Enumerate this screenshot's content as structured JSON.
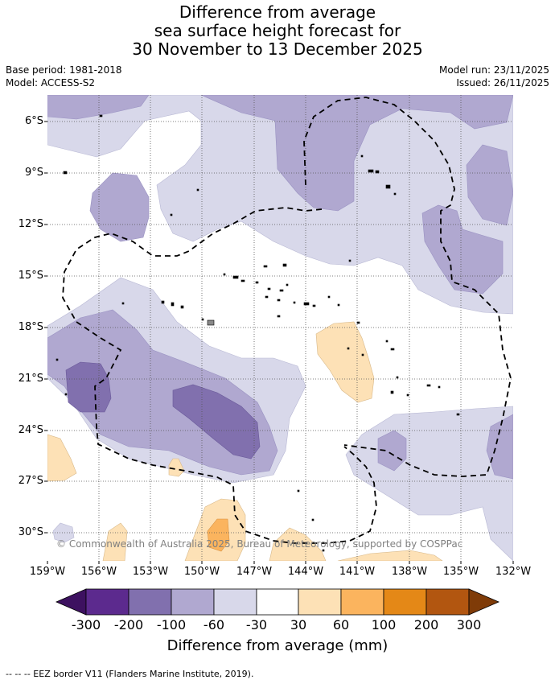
{
  "title": {
    "line1": "Difference from average",
    "line2": "sea surface height forecast for",
    "line3": "30 November to 13 December 2025"
  },
  "meta": {
    "base_period": "Base period: 1981-2018",
    "model": "Model: ACCESS-S2",
    "model_run": "Model run: 23/11/2025",
    "issued": "Issued: 26/11/2025"
  },
  "axes": {
    "lat_labels": [
      "6°S",
      "9°S",
      "12°S",
      "15°S",
      "18°S",
      "21°S",
      "24°S",
      "27°S",
      "30°S"
    ],
    "lon_labels": [
      "159°W",
      "156°W",
      "153°W",
      "150°W",
      "147°W",
      "144°W",
      "141°W",
      "138°W",
      "135°W",
      "132°W"
    ]
  },
  "colorbar": {
    "ticks": [
      "-300",
      "-200",
      "-100",
      "-60",
      "-30",
      "30",
      "60",
      "100",
      "200",
      "300"
    ],
    "label": "Difference from average (mm)",
    "colors": [
      "#3d1160",
      "#5c2a8e",
      "#8170ae",
      "#b0a8d0",
      "#d8d8ea",
      "#ffffff",
      "#fde1b6",
      "#fbb45e",
      "#e48817",
      "#b25610",
      "#7f3b08"
    ]
  },
  "copyright": "© Commonwealth of Australia 2025, Bureau of Meteorology, supported by COSPPac",
  "footer": "-- -- -- EEZ border V11 (Flanders Marine Institute, 2019)."
}
